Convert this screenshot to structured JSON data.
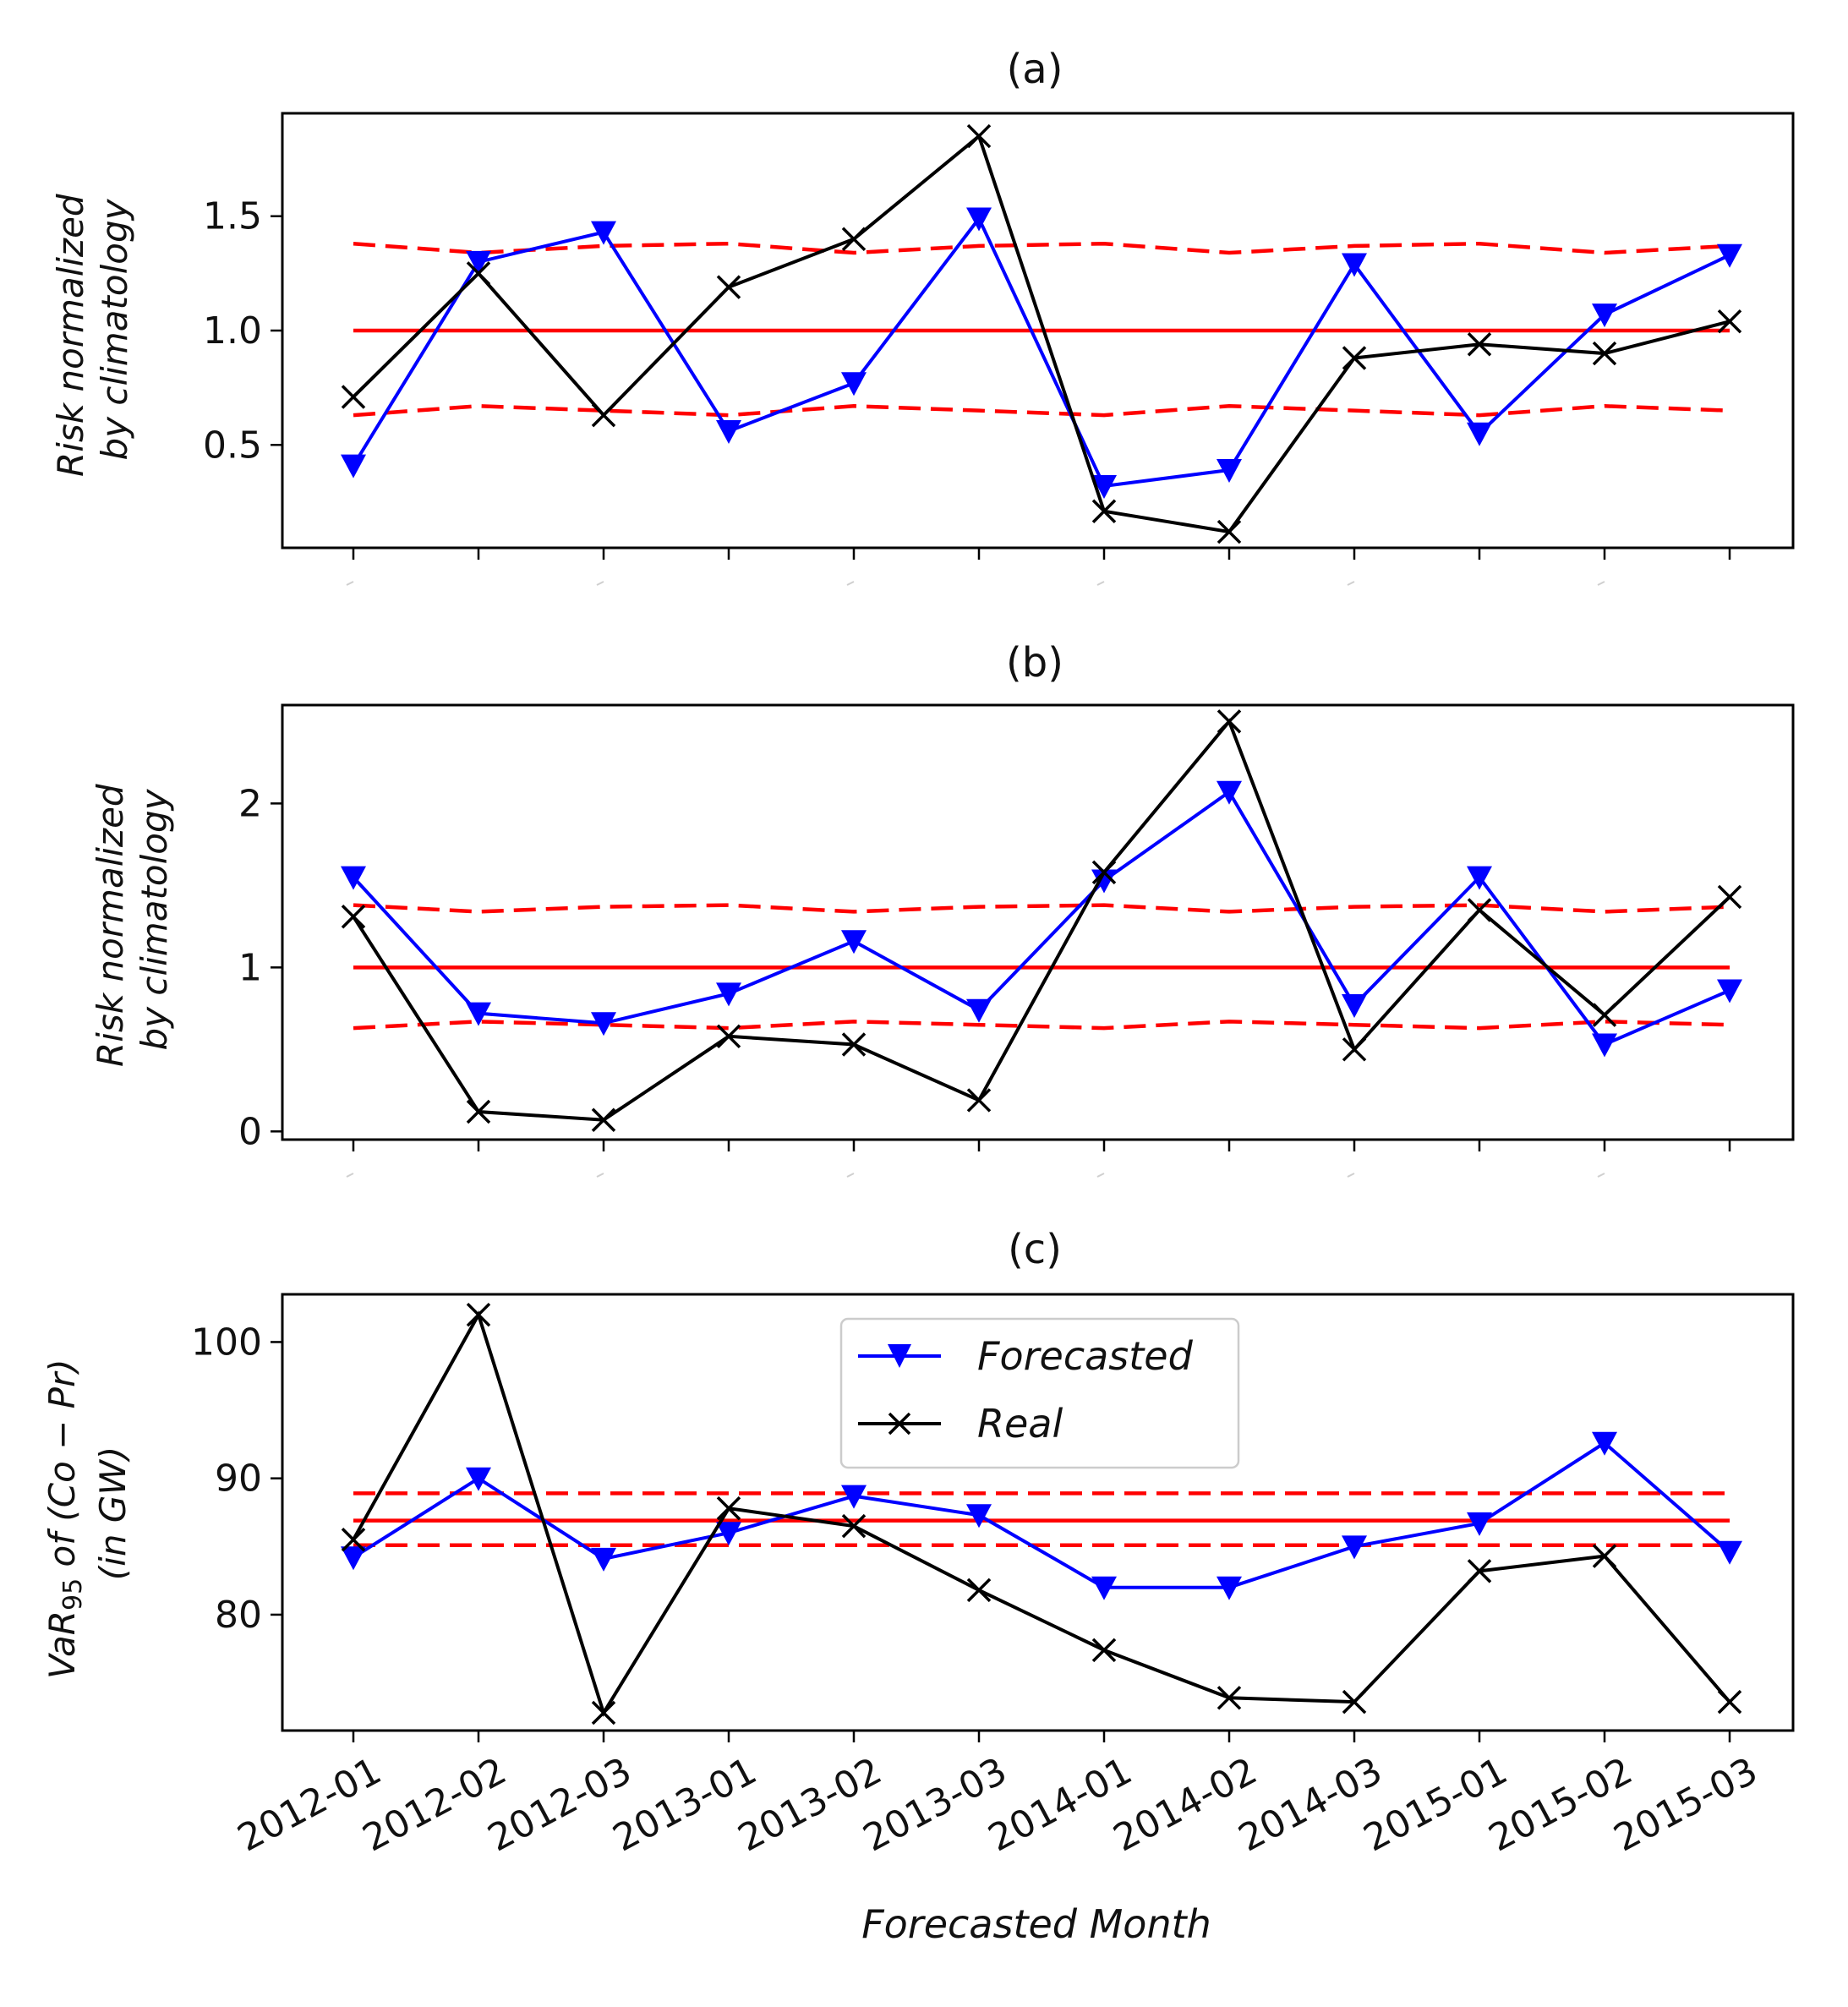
{
  "chart_data": [
    {
      "type": "line",
      "title": "(a)",
      "ylabel_line1": "Risk normalized",
      "ylabel_line2": "by climatology",
      "xlabel": "",
      "categories": [
        "2012-01",
        "2012-02",
        "2012-03",
        "2013-01",
        "2013-02",
        "2013-03",
        "2014-01",
        "2014-02",
        "2014-03",
        "2015-01",
        "2015-02",
        "2015-03"
      ],
      "ylim": [
        0.05,
        1.95
      ],
      "yticks": [
        0.5,
        1.0,
        1.5
      ],
      "ytick_labels": [
        "0.5",
        "1.0",
        "1.5"
      ],
      "series": [
        {
          "name": "Forecasted",
          "color": "#0000ff",
          "marker": "triangle-down",
          "values": [
            0.41,
            1.3,
            1.43,
            0.56,
            0.77,
            1.49,
            0.32,
            0.39,
            1.29,
            0.55,
            1.07,
            1.33
          ]
        },
        {
          "name": "Real",
          "color": "#000000",
          "marker": "x",
          "values": [
            0.71,
            1.25,
            0.63,
            1.19,
            1.4,
            1.85,
            0.21,
            0.12,
            0.88,
            0.94,
            0.9,
            1.04
          ]
        }
      ],
      "reference_lines": [
        {
          "name": "mean",
          "color": "#ff0000",
          "dash": false,
          "values": [
            1.0,
            1.0,
            1.0,
            1.0,
            1.0,
            1.0,
            1.0,
            1.0,
            1.0,
            1.0,
            1.0,
            1.0
          ]
        },
        {
          "name": "upper",
          "color": "#ff0000",
          "dash": true,
          "values": [
            1.38,
            1.34,
            1.37,
            1.38,
            1.34,
            1.37,
            1.38,
            1.34,
            1.37,
            1.38,
            1.34,
            1.37
          ]
        },
        {
          "name": "lower",
          "color": "#ff0000",
          "dash": true,
          "values": [
            0.63,
            0.67,
            0.65,
            0.63,
            0.67,
            0.65,
            0.63,
            0.67,
            0.65,
            0.63,
            0.67,
            0.65
          ]
        }
      ]
    },
    {
      "type": "line",
      "title": "(b)",
      "ylabel_line1": "Risk normalized",
      "ylabel_line2": "by climatology",
      "xlabel": "",
      "categories": [
        "2012-01",
        "2012-02",
        "2012-03",
        "2013-01",
        "2013-02",
        "2013-03",
        "2014-01",
        "2014-02",
        "2014-03",
        "2015-01",
        "2015-02",
        "2015-03"
      ],
      "ylim": [
        -0.05,
        2.6
      ],
      "yticks": [
        0,
        1,
        2
      ],
      "ytick_labels": [
        "0",
        "1",
        "2"
      ],
      "series": [
        {
          "name": "Forecasted",
          "color": "#0000ff",
          "marker": "triangle-down",
          "values": [
            1.55,
            0.72,
            0.66,
            0.84,
            1.16,
            0.74,
            1.53,
            2.07,
            0.77,
            1.55,
            0.53,
            0.86
          ]
        },
        {
          "name": "Real",
          "color": "#000000",
          "marker": "x",
          "values": [
            1.31,
            0.12,
            0.07,
            0.58,
            0.53,
            0.19,
            1.58,
            2.5,
            0.5,
            1.35,
            0.71,
            1.43
          ]
        }
      ],
      "reference_lines": [
        {
          "name": "mean",
          "color": "#ff0000",
          "dash": false,
          "values": [
            1.0,
            1.0,
            1.0,
            1.0,
            1.0,
            1.0,
            1.0,
            1.0,
            1.0,
            1.0,
            1.0,
            1.0
          ]
        },
        {
          "name": "upper",
          "color": "#ff0000",
          "dash": true,
          "values": [
            1.38,
            1.34,
            1.37,
            1.38,
            1.34,
            1.37,
            1.38,
            1.34,
            1.37,
            1.38,
            1.34,
            1.37
          ]
        },
        {
          "name": "lower",
          "color": "#ff0000",
          "dash": true,
          "values": [
            0.63,
            0.67,
            0.65,
            0.63,
            0.67,
            0.65,
            0.63,
            0.67,
            0.65,
            0.63,
            0.67,
            0.65
          ]
        }
      ]
    },
    {
      "type": "line",
      "title": "(c)",
      "ylabel_line1": "VaR",
      "ylabel_sub": "95",
      "ylabel_line1_rest": " of (Co − Pr)",
      "ylabel_line2": "(in GW)",
      "xlabel": "Forecasted Month",
      "categories": [
        "2012-01",
        "2012-02",
        "2012-03",
        "2013-01",
        "2013-02",
        "2013-03",
        "2014-01",
        "2014-02",
        "2014-03",
        "2015-01",
        "2015-02",
        "2015-03"
      ],
      "ylim": [
        71.5,
        103.5
      ],
      "yticks": [
        80,
        90,
        100
      ],
      "ytick_labels": [
        "80",
        "90",
        "100"
      ],
      "legend": {
        "position": "upper-center",
        "entries": [
          "Forecasted",
          "Real"
        ]
      },
      "series": [
        {
          "name": "Forecasted",
          "color": "#0000ff",
          "marker": "triangle-down",
          "values": [
            84.2,
            90.0,
            84.1,
            86.0,
            88.7,
            87.3,
            82.0,
            82.0,
            85.0,
            86.7,
            92.6,
            84.6
          ]
        },
        {
          "name": "Real",
          "color": "#000000",
          "marker": "x",
          "values": [
            85.5,
            102.0,
            72.8,
            87.8,
            86.5,
            81.8,
            77.4,
            73.9,
            73.6,
            83.2,
            84.3,
            73.6
          ]
        }
      ],
      "reference_lines": [
        {
          "name": "mean",
          "color": "#ff0000",
          "dash": false,
          "values": [
            86.9,
            86.9,
            86.9,
            86.9,
            86.9,
            86.9,
            86.9,
            86.9,
            86.9,
            86.9,
            86.9,
            86.9
          ]
        },
        {
          "name": "upper",
          "color": "#ff0000",
          "dash": true,
          "values": [
            88.9,
            88.9,
            88.9,
            88.9,
            88.9,
            88.9,
            88.9,
            88.9,
            88.9,
            88.9,
            88.9,
            88.9
          ]
        },
        {
          "name": "lower",
          "color": "#ff0000",
          "dash": true,
          "values": [
            85.1,
            85.1,
            85.1,
            85.1,
            85.1,
            85.1,
            85.1,
            85.1,
            85.1,
            85.1,
            85.1,
            85.1
          ]
        }
      ]
    }
  ]
}
